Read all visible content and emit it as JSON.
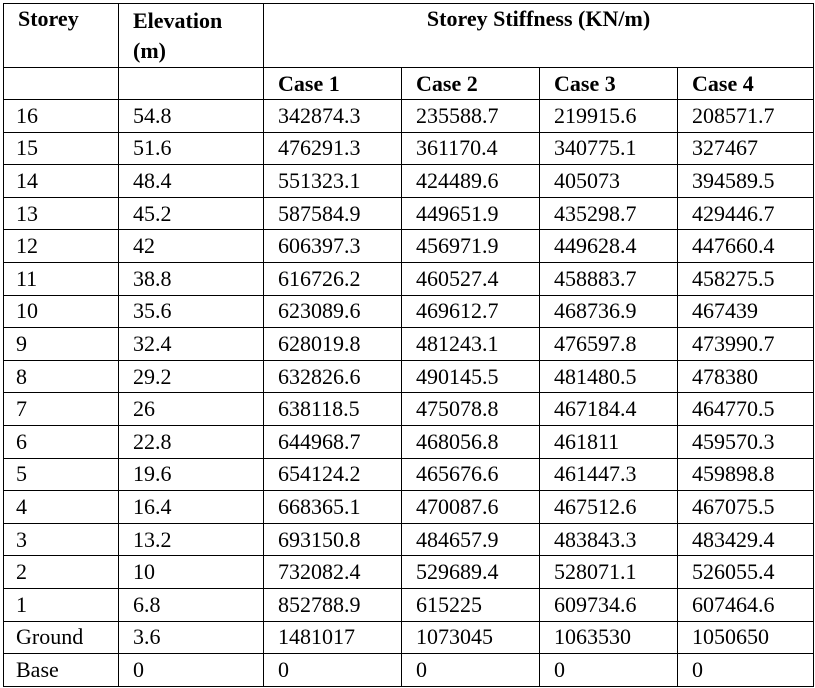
{
  "header": {
    "storey": "Storey",
    "elevation": "Elevation (m)",
    "stiffness": "Storey Stiffness (KN/m)",
    "cases": [
      "Case 1",
      "Case 2",
      "Case 3",
      "Case 4"
    ]
  },
  "table": {
    "rows": [
      [
        "16",
        "54.8",
        "342874.3",
        "235588.7",
        "219915.6",
        "208571.7"
      ],
      [
        "15",
        "51.6",
        "476291.3",
        "361170.4",
        "340775.1",
        "327467"
      ],
      [
        "14",
        "48.4",
        "551323.1",
        "424489.6",
        "405073",
        "394589.5"
      ],
      [
        "13",
        "45.2",
        "587584.9",
        "449651.9",
        "435298.7",
        "429446.7"
      ],
      [
        "12",
        "42",
        "606397.3",
        "456971.9",
        "449628.4",
        "447660.4"
      ],
      [
        "11",
        "38.8",
        "616726.2",
        "460527.4",
        "458883.7",
        "458275.5"
      ],
      [
        "10",
        "35.6",
        "623089.6",
        "469612.7",
        "468736.9",
        "467439"
      ],
      [
        "9",
        "32.4",
        "628019.8",
        "481243.1",
        "476597.8",
        "473990.7"
      ],
      [
        "8",
        "29.2",
        "632826.6",
        "490145.5",
        "481480.5",
        "478380"
      ],
      [
        "7",
        "26",
        "638118.5",
        "475078.8",
        "467184.4",
        "464770.5"
      ],
      [
        "6",
        "22.8",
        "644968.7",
        "468056.8",
        "461811",
        "459570.3"
      ],
      [
        "5",
        "19.6",
        "654124.2",
        "465676.6",
        "461447.3",
        "459898.8"
      ],
      [
        "4",
        "16.4",
        "668365.1",
        "470087.6",
        "467512.6",
        "467075.5"
      ],
      [
        "3",
        "13.2",
        "693150.8",
        "484657.9",
        "483843.3",
        "483429.4"
      ],
      [
        "2",
        "10",
        "732082.4",
        "529689.4",
        "528071.1",
        "526055.4"
      ],
      [
        "1",
        "6.8",
        "852788.9",
        "615225",
        "609734.6",
        "607464.6"
      ],
      [
        "Ground",
        "3.6",
        "1481017",
        "1073045",
        "1063530",
        "1050650"
      ],
      [
        "Base",
        "0",
        "0",
        "0",
        "0",
        "0"
      ]
    ]
  }
}
